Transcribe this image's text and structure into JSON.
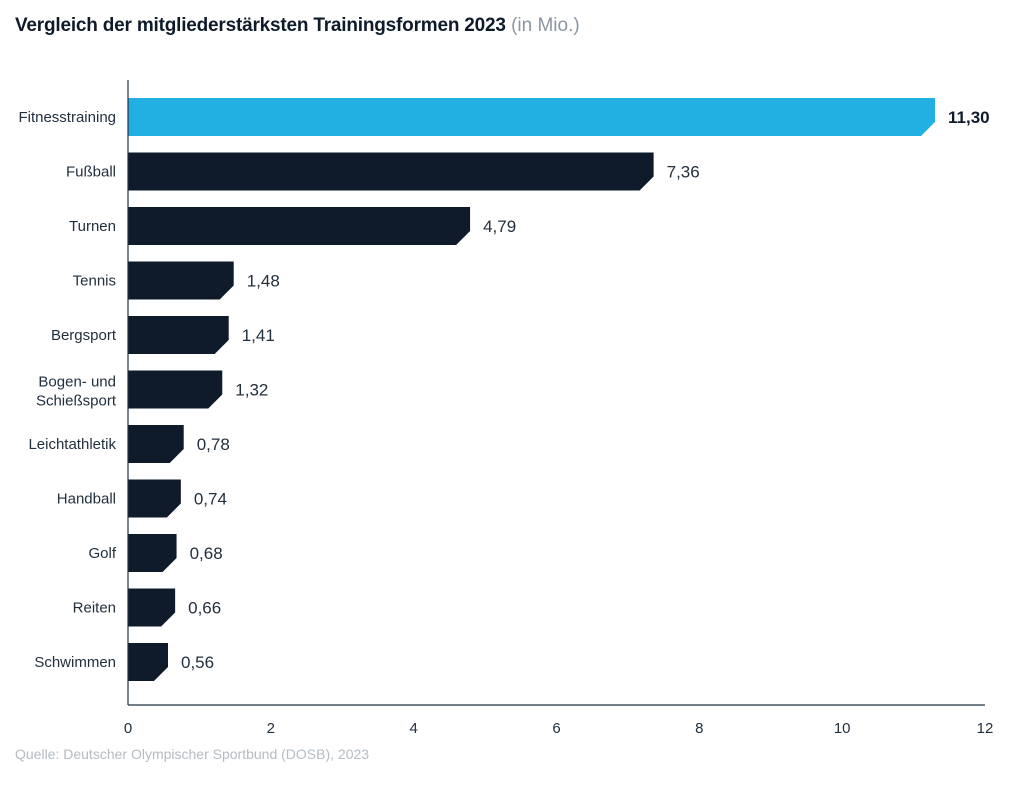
{
  "chart_data": {
    "type": "bar",
    "orientation": "horizontal",
    "title": "Vergleich der mitgliederstärksten Trainingsformen 2023",
    "unit": "(in Mio.)",
    "source": "Quelle: Deutscher Olympischer Sportbund (DOSB), 2023",
    "categories": [
      "Fitnesstraining",
      "Fußball",
      "Turnen",
      "Tennis",
      "Bergsport",
      "Bogen- und Schießsport",
      "Leichtathletik",
      "Handball",
      "Golf",
      "Reiten",
      "Schwimmen"
    ],
    "values": [
      11.3,
      7.36,
      4.79,
      1.48,
      1.41,
      1.32,
      0.78,
      0.74,
      0.68,
      0.66,
      0.56
    ],
    "value_labels": [
      "11,30",
      "7,36",
      "4,79",
      "1,48",
      "1,41",
      "1,32",
      "0,78",
      "0,74",
      "0,68",
      "0,66",
      "0,56"
    ],
    "highlight_index": 0,
    "xlim": [
      0,
      12
    ],
    "xticks": [
      0,
      2,
      4,
      6,
      8,
      10,
      12
    ],
    "grid": false,
    "colors": {
      "highlight": "#22b0e2",
      "bar": "#0f1b2a"
    }
  }
}
